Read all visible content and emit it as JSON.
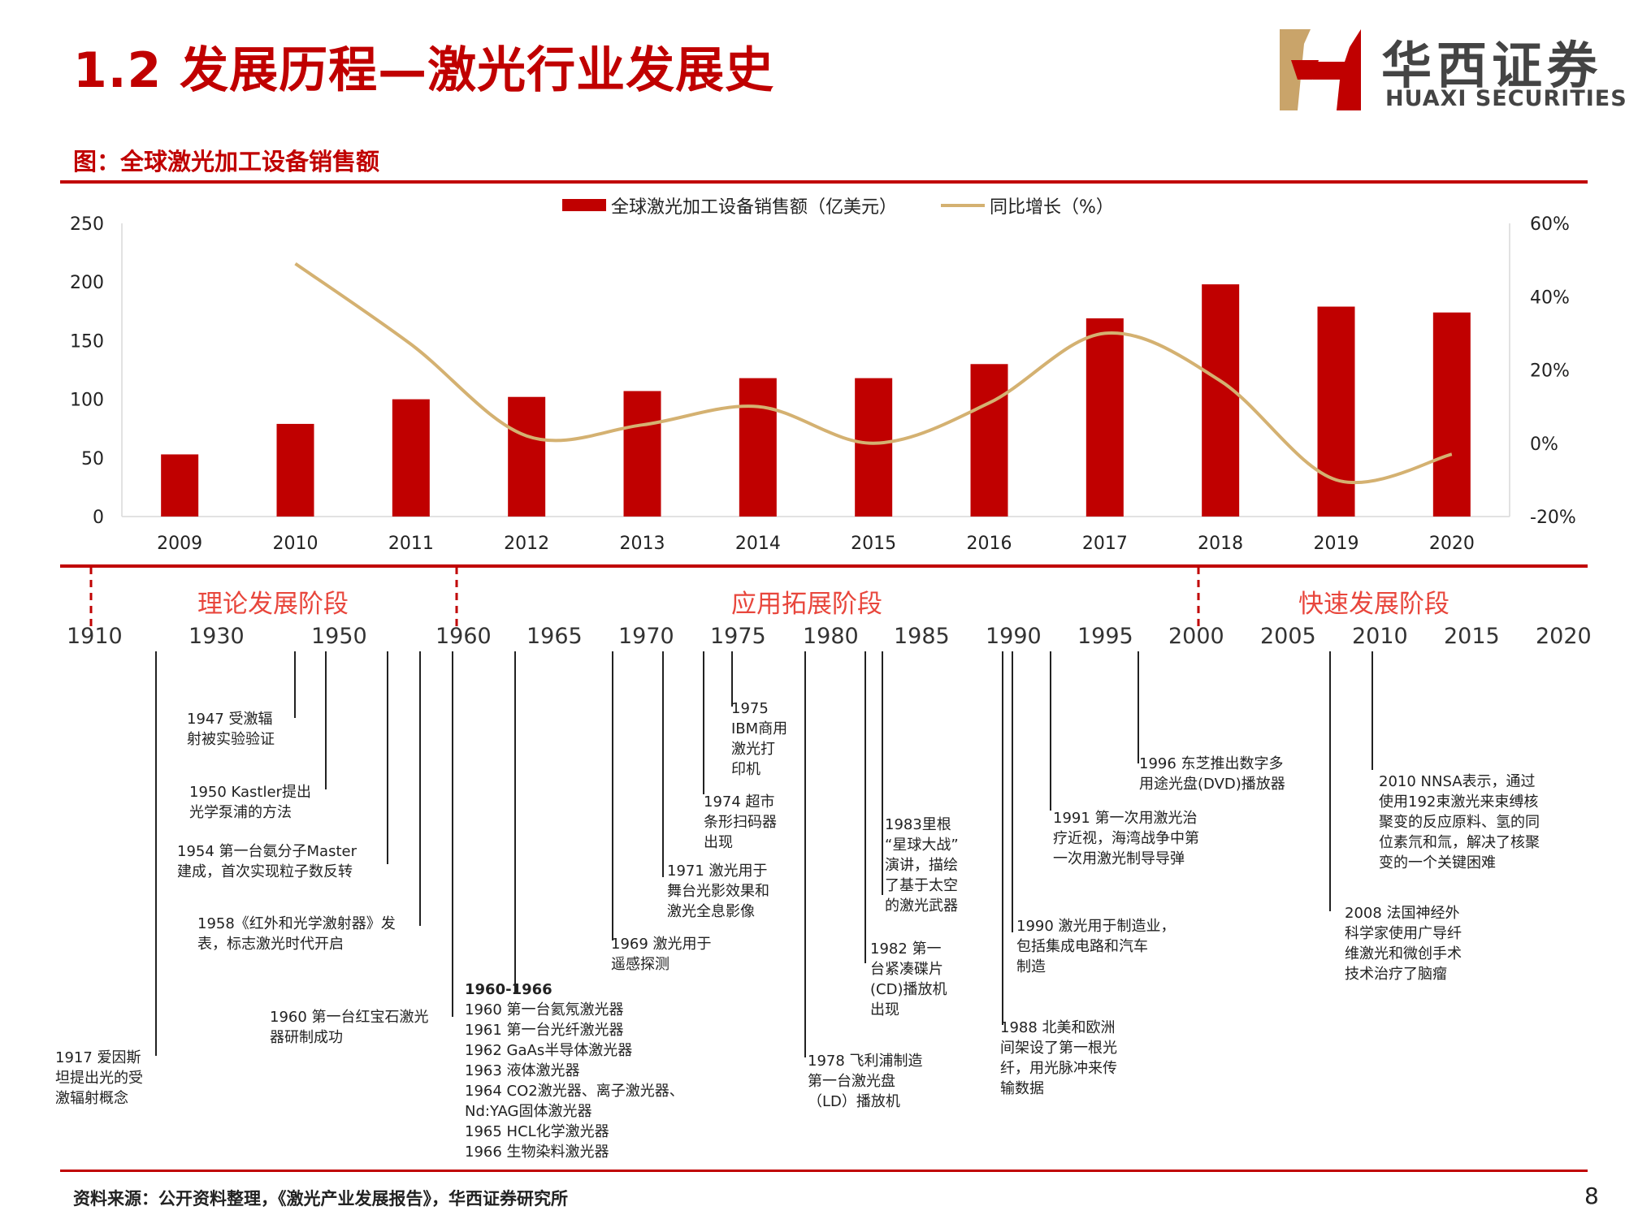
{
  "header": {
    "title": "1.2 发展历程—激光行业发展史",
    "logo_cn": "华西证券",
    "logo_en": "HUAXI SECURITIES"
  },
  "figure_title": "图：全球激光加工设备销售额",
  "chart_data": {
    "type": "bar+line",
    "categories": [
      "2009",
      "2010",
      "2011",
      "2012",
      "2013",
      "2014",
      "2015",
      "2016",
      "2017",
      "2018",
      "2019",
      "2020"
    ],
    "series": [
      {
        "name": "全球激光加工设备销售额（亿美元）",
        "type": "bar",
        "axis": "left",
        "values": [
          53,
          79,
          100,
          102,
          107,
          118,
          118,
          130,
          169,
          198,
          179,
          174
        ]
      },
      {
        "name": "同比增长（%）",
        "type": "line",
        "axis": "right",
        "values": [
          null,
          49,
          27,
          2,
          5,
          10,
          0,
          11,
          30,
          17,
          -10,
          -3
        ]
      }
    ],
    "y_left": {
      "min": 0,
      "max": 250,
      "ticks": [
        0,
        50,
        100,
        150,
        200,
        250
      ]
    },
    "y_right": {
      "min": -20,
      "max": 60,
      "ticks": [
        "-20%",
        "0%",
        "20%",
        "40%",
        "60%"
      ]
    },
    "legend": "top-center",
    "grid": false,
    "colors": {
      "bar": "#c00000",
      "line": "#d4b171"
    }
  },
  "timeline": {
    "phases": [
      "理论发展阶段",
      "应用拓展阶段",
      "快速发展阶段"
    ],
    "years": [
      "1910",
      "1930",
      "1950",
      "1960",
      "1965",
      "1970",
      "1975",
      "1980",
      "1985",
      "1990",
      "1995",
      "2000",
      "2005",
      "2010",
      "2015",
      "2020"
    ],
    "events": [
      {
        "text": "1917 爱因斯\n坦提出光的受\n激辐射概念"
      },
      {
        "text": "1947 受激辐\n射被实验验证"
      },
      {
        "text": "1950 Kastler提出\n光学泵浦的方法"
      },
      {
        "text": "1954 第一台氨分子Master\n建成，首次实现粒子数反转"
      },
      {
        "text": "1958《红外和光学激射器》发\n表，标志激光时代开启"
      },
      {
        "text": "1960 第一台红宝石激光\n器研制成功"
      },
      {
        "title": "1960-1966",
        "text": "1960 第一台氦氖激光器\n1961 第一台光纤激光器\n1962 GaAs半导体激光器\n1963 液体激光器\n1964 CO2激光器、离子激光器、\nNd:YAG固体激光器\n1965 HCL化学激光器\n1966 生物染料激光器"
      },
      {
        "text": "1969 激光用于\n遥感探测"
      },
      {
        "text": "1971 激光用于\n舞台光影效果和\n激光全息影像"
      },
      {
        "text": "1974 超市\n条形扫码器\n出现"
      },
      {
        "text": "1975\nIBM商用\n激光打\n印机"
      },
      {
        "text": "1978 飞利浦制造\n第一台激光盘\n（LD）播放机"
      },
      {
        "text": "1982 第一\n台紧凑碟片\n(CD)播放机\n出现"
      },
      {
        "text": "1983里根\n“星球大战”\n演讲，描绘\n了基于太空\n的激光武器"
      },
      {
        "text": "1988 北美和欧洲\n间架设了第一根光\n纤，用光脉冲来传\n输数据"
      },
      {
        "text": "1990 激光用于制造业，\n包括集成电路和汽车\n制造"
      },
      {
        "text": "1991 第一次用激光治\n疗近视，海湾战争中第\n一次用激光制导导弹"
      },
      {
        "text": "1996 东芝推出数字多\n用途光盘(DVD)播放器"
      },
      {
        "text": "2008 法国神经外\n科学家使用广导纤\n维激光和微创手术\n技术治疗了脑瘤"
      },
      {
        "text": "2010 NNSA表示，通过\n使用192束激光来束缚核\n聚变的反应原料、氢的同\n位素氘和氚，解决了核聚\n变的一个关键困难"
      }
    ]
  },
  "footer": {
    "source": "资料来源：公开资料整理，《激光产业发展报告》，华西证券研究所",
    "page_number": "8"
  }
}
